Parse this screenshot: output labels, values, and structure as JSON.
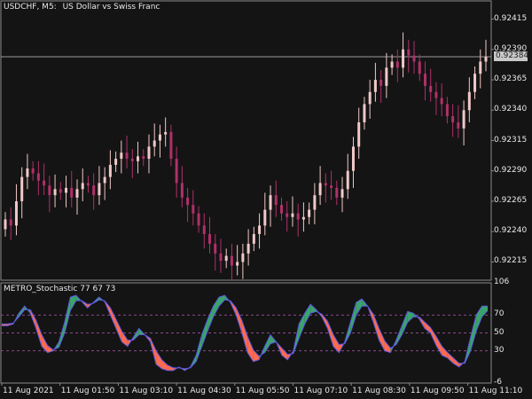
{
  "header": {
    "symbol_tf": "USDCHF, M5:",
    "description": "US Dollar vs Swiss Franc"
  },
  "indicator": {
    "title": "METRO_Stochastic 77 67 73"
  },
  "current_price": "0.92384",
  "price_axis": {
    "labels": [
      "0.92415",
      "0.92390",
      "0.92365",
      "0.92340",
      "0.92315",
      "0.92290",
      "0.92265",
      "0.92240",
      "0.92215"
    ],
    "values": [
      0.92415,
      0.9239,
      0.92365,
      0.9234,
      0.92315,
      0.9229,
      0.92265,
      0.9224,
      0.92215
    ]
  },
  "indicator_axis": {
    "labels": [
      "106",
      "70",
      "50",
      "30",
      "-6"
    ],
    "values": [
      106,
      70,
      50,
      30,
      -6
    ]
  },
  "time_axis": {
    "labels": [
      "11 Aug 2021",
      "11 Aug 01:50",
      "11 Aug 03:10",
      "11 Aug 04:30",
      "11 Aug 05:50",
      "11 Aug 07:10",
      "11 Aug 08:30",
      "11 Aug 09:50",
      "11 Aug 11:10"
    ]
  },
  "colors": {
    "background": "#141414",
    "bull": "#f0c8c8",
    "bear": "#b0306a",
    "fast_up": "#3aa46a",
    "fast_down": "#ff6a50",
    "line": "#5a5ae0",
    "level": "#8a4a8a"
  },
  "chart_data": [
    {
      "type": "candlestick",
      "title": "USDCHF, M5: US Dollar vs Swiss Franc",
      "ylim": [
        0.922,
        0.9243
      ],
      "closes": [
        0.9225,
        0.92245,
        0.92265,
        0.92285,
        0.92292,
        0.92288,
        0.92282,
        0.92278,
        0.9227,
        0.92275,
        0.92272,
        0.92276,
        0.92268,
        0.92275,
        0.9228,
        0.92278,
        0.9227,
        0.9228,
        0.92285,
        0.92295,
        0.923,
        0.92305,
        0.923,
        0.92298,
        0.92302,
        0.923,
        0.9231,
        0.92315,
        0.9232,
        0.92322,
        0.923,
        0.9228,
        0.92268,
        0.92262,
        0.92255,
        0.92245,
        0.92238,
        0.9223,
        0.92222,
        0.92216,
        0.9222,
        0.92212,
        0.92215,
        0.92222,
        0.9223,
        0.92238,
        0.92245,
        0.92258,
        0.9227,
        0.92262,
        0.92255,
        0.92252,
        0.92255,
        0.9225,
        0.92252,
        0.92258,
        0.9227,
        0.9228,
        0.92278,
        0.92276,
        0.92268,
        0.92275,
        0.9229,
        0.9231,
        0.9233,
        0.92345,
        0.92355,
        0.92365,
        0.9236,
        0.92375,
        0.9238,
        0.92375,
        0.9239,
        0.92385,
        0.9238,
        0.9237,
        0.9236,
        0.92355,
        0.9235,
        0.92345,
        0.92335,
        0.9233,
        0.92325,
        0.9234,
        0.92355,
        0.9237,
        0.9238,
        0.92384
      ]
    },
    {
      "type": "line",
      "title": "METRO_Stochastic 77 67 73",
      "ylim": [
        -6,
        106
      ],
      "levels": [
        70,
        50,
        30
      ],
      "series": [
        {
          "values": [
            58,
            58,
            60,
            72,
            80,
            72,
            55,
            35,
            28,
            30,
            40,
            62,
            90,
            92,
            85,
            78,
            84,
            90,
            85,
            70,
            55,
            40,
            35,
            45,
            55,
            48,
            40,
            15,
            10,
            8,
            8,
            12,
            8,
            12,
            25,
            48,
            65,
            80,
            90,
            92,
            84,
            70,
            50,
            28,
            18,
            20,
            35,
            48,
            40,
            25,
            20,
            30,
            60,
            72,
            82,
            76,
            68,
            55,
            35,
            28,
            40,
            62,
            84,
            88,
            80,
            62,
            42,
            30,
            28,
            42,
            58,
            74,
            72,
            66,
            55,
            50,
            36,
            25,
            22,
            16,
            12,
            18,
            45,
            70,
            80,
            80
          ]
        },
        {
          "values": [
            60,
            60,
            61,
            68,
            76,
            76,
            64,
            48,
            36,
            31,
            34,
            50,
            75,
            86,
            86,
            82,
            83,
            87,
            86,
            78,
            65,
            52,
            42,
            42,
            48,
            48,
            44,
            30,
            20,
            14,
            11,
            11,
            10,
            11,
            18,
            35,
            52,
            68,
            80,
            87,
            86,
            78,
            64,
            46,
            31,
            24,
            28,
            38,
            40,
            33,
            26,
            27,
            44,
            60,
            72,
            74,
            71,
            63,
            48,
            37,
            38,
            50,
            70,
            80,
            80,
            71,
            55,
            41,
            33,
            37,
            48,
            62,
            68,
            68,
            62,
            56,
            46,
            35,
            28,
            22,
            16,
            16,
            30,
            52,
            68,
            75
          ]
        }
      ]
    }
  ]
}
